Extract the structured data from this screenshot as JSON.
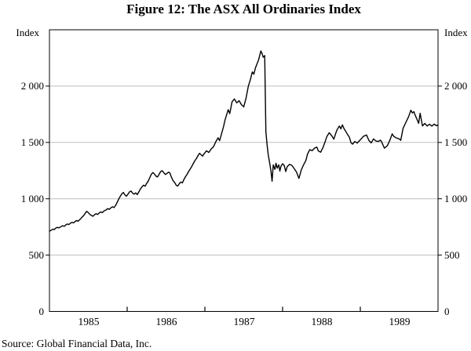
{
  "figure": {
    "title": "Figure 12: The ASX All Ordinaries Index",
    "source": "Source: Global Financial Data, Inc."
  },
  "colors": {
    "line": "#000000",
    "gridline": "#bdbdbd",
    "axis": "#000000",
    "tick": "#000000",
    "background": "#ffffff",
    "text": "#000000"
  },
  "chart_data": {
    "type": "line",
    "title": "Figure 12: The ASX All Ordinaries Index",
    "xlabel": "",
    "ylabel": "Index",
    "grid": true,
    "legend": "none",
    "x_axis": {
      "range": [
        1985,
        1990
      ],
      "tick_years": [
        1986,
        1987,
        1988,
        1989
      ],
      "labels": [
        {
          "text": "1985",
          "x": 1985.5
        },
        {
          "text": "1986",
          "x": 1986.5
        },
        {
          "text": "1987",
          "x": 1987.5
        },
        {
          "text": "1988",
          "x": 1988.5
        },
        {
          "text": "1989",
          "x": 1989.5
        }
      ]
    },
    "y_axis": {
      "label_left": "Index",
      "label_right": "Index",
      "range": [
        0,
        2500
      ],
      "gridlines": [
        500,
        1000,
        1500,
        2000
      ],
      "ticks": [
        {
          "value": 0,
          "label": "0"
        },
        {
          "value": 500,
          "label": "500"
        },
        {
          "value": 1000,
          "label": "1 000"
        },
        {
          "value": 1500,
          "label": "1 500"
        },
        {
          "value": 2000,
          "label": "2 000"
        }
      ]
    },
    "series": [
      {
        "name": "ASX All Ordinaries Index",
        "color": "#000000",
        "points": [
          [
            1985.0,
            712
          ],
          [
            1985.02,
            720
          ],
          [
            1985.04,
            730
          ],
          [
            1985.06,
            726
          ],
          [
            1985.08,
            739
          ],
          [
            1985.1,
            746
          ],
          [
            1985.12,
            741
          ],
          [
            1985.15,
            753
          ],
          [
            1985.17,
            761
          ],
          [
            1985.19,
            756
          ],
          [
            1985.21,
            768
          ],
          [
            1985.23,
            776
          ],
          [
            1985.25,
            771
          ],
          [
            1985.27,
            783
          ],
          [
            1985.29,
            791
          ],
          [
            1985.31,
            786
          ],
          [
            1985.33,
            799
          ],
          [
            1985.35,
            807
          ],
          [
            1985.37,
            801
          ],
          [
            1985.4,
            821
          ],
          [
            1985.42,
            837
          ],
          [
            1985.44,
            851
          ],
          [
            1985.46,
            871
          ],
          [
            1985.48,
            889
          ],
          [
            1985.5,
            877
          ],
          [
            1985.52,
            861
          ],
          [
            1985.54,
            852
          ],
          [
            1985.56,
            845
          ],
          [
            1985.58,
            858
          ],
          [
            1985.6,
            868
          ],
          [
            1985.62,
            861
          ],
          [
            1985.64,
            875
          ],
          [
            1985.66,
            883
          ],
          [
            1985.68,
            877
          ],
          [
            1985.7,
            891
          ],
          [
            1985.73,
            901
          ],
          [
            1985.75,
            913
          ],
          [
            1985.77,
            906
          ],
          [
            1985.79,
            919
          ],
          [
            1985.81,
            929
          ],
          [
            1985.83,
            922
          ],
          [
            1985.85,
            939
          ],
          [
            1985.87,
            966
          ],
          [
            1985.89,
            996
          ],
          [
            1985.91,
            1021
          ],
          [
            1985.93,
            1043
          ],
          [
            1985.95,
            1056
          ],
          [
            1985.97,
            1036
          ],
          [
            1985.99,
            1022
          ],
          [
            1986.01,
            1041
          ],
          [
            1986.03,
            1061
          ],
          [
            1986.05,
            1069
          ],
          [
            1986.07,
            1051
          ],
          [
            1986.09,
            1040
          ],
          [
            1986.11,
            1053
          ],
          [
            1986.13,
            1037
          ],
          [
            1986.15,
            1061
          ],
          [
            1986.17,
            1086
          ],
          [
            1986.19,
            1106
          ],
          [
            1986.21,
            1121
          ],
          [
            1986.23,
            1111
          ],
          [
            1986.25,
            1136
          ],
          [
            1986.27,
            1156
          ],
          [
            1986.29,
            1186
          ],
          [
            1986.31,
            1216
          ],
          [
            1986.33,
            1233
          ],
          [
            1986.35,
            1221
          ],
          [
            1986.37,
            1201
          ],
          [
            1986.39,
            1193
          ],
          [
            1986.41,
            1216
          ],
          [
            1986.43,
            1241
          ],
          [
            1986.45,
            1249
          ],
          [
            1986.47,
            1233
          ],
          [
            1986.49,
            1216
          ],
          [
            1986.51,
            1223
          ],
          [
            1986.53,
            1236
          ],
          [
            1986.55,
            1229
          ],
          [
            1986.57,
            1191
          ],
          [
            1986.59,
            1161
          ],
          [
            1986.61,
            1146
          ],
          [
            1986.63,
            1121
          ],
          [
            1986.65,
            1113
          ],
          [
            1986.67,
            1133
          ],
          [
            1986.69,
            1148
          ],
          [
            1986.71,
            1141
          ],
          [
            1986.73,
            1171
          ],
          [
            1986.75,
            1196
          ],
          [
            1986.77,
            1216
          ],
          [
            1986.79,
            1241
          ],
          [
            1986.81,
            1263
          ],
          [
            1986.83,
            1286
          ],
          [
            1986.85,
            1311
          ],
          [
            1986.87,
            1336
          ],
          [
            1986.89,
            1356
          ],
          [
            1986.91,
            1381
          ],
          [
            1986.93,
            1403
          ],
          [
            1986.95,
            1391
          ],
          [
            1986.97,
            1379
          ],
          [
            1986.99,
            1399
          ],
          [
            1987.02,
            1426
          ],
          [
            1987.05,
            1411
          ],
          [
            1987.08,
            1441
          ],
          [
            1987.11,
            1461
          ],
          [
            1987.14,
            1506
          ],
          [
            1987.17,
            1541
          ],
          [
            1987.19,
            1516
          ],
          [
            1987.22,
            1591
          ],
          [
            1987.24,
            1641
          ],
          [
            1987.26,
            1701
          ],
          [
            1987.28,
            1746
          ],
          [
            1987.3,
            1791
          ],
          [
            1987.32,
            1756
          ],
          [
            1987.35,
            1861
          ],
          [
            1987.38,
            1886
          ],
          [
            1987.41,
            1851
          ],
          [
            1987.44,
            1871
          ],
          [
            1987.47,
            1836
          ],
          [
            1987.5,
            1816
          ],
          [
            1987.53,
            1896
          ],
          [
            1987.56,
            2001
          ],
          [
            1987.585,
            2056
          ],
          [
            1987.61,
            2126
          ],
          [
            1987.63,
            2106
          ],
          [
            1987.65,
            2161
          ],
          [
            1987.67,
            2196
          ],
          [
            1987.69,
            2231
          ],
          [
            1987.705,
            2271
          ],
          [
            1987.72,
            2312
          ],
          [
            1987.735,
            2289
          ],
          [
            1987.75,
            2256
          ],
          [
            1987.77,
            2271
          ],
          [
            1987.785,
            1595
          ],
          [
            1987.8,
            1481
          ],
          [
            1987.815,
            1391
          ],
          [
            1987.83,
            1331
          ],
          [
            1987.85,
            1251
          ],
          [
            1987.865,
            1156
          ],
          [
            1987.88,
            1301
          ],
          [
            1987.9,
            1261
          ],
          [
            1987.915,
            1316
          ],
          [
            1987.93,
            1271
          ],
          [
            1987.95,
            1301
          ],
          [
            1987.965,
            1246
          ],
          [
            1987.98,
            1291
          ],
          [
            1988.0,
            1311
          ],
          [
            1988.02,
            1296
          ],
          [
            1988.04,
            1241
          ],
          [
            1988.06,
            1286
          ],
          [
            1988.09,
            1306
          ],
          [
            1988.12,
            1296
          ],
          [
            1988.15,
            1266
          ],
          [
            1988.18,
            1236
          ],
          [
            1988.21,
            1181
          ],
          [
            1988.24,
            1256
          ],
          [
            1988.27,
            1301
          ],
          [
            1988.3,
            1341
          ],
          [
            1988.32,
            1396
          ],
          [
            1988.35,
            1436
          ],
          [
            1988.38,
            1426
          ],
          [
            1988.41,
            1449
          ],
          [
            1988.44,
            1459
          ],
          [
            1988.46,
            1425
          ],
          [
            1988.49,
            1413
          ],
          [
            1988.52,
            1456
          ],
          [
            1988.55,
            1511
          ],
          [
            1988.57,
            1553
          ],
          [
            1988.6,
            1586
          ],
          [
            1988.63,
            1561
          ],
          [
            1988.66,
            1529
          ],
          [
            1988.68,
            1573
          ],
          [
            1988.7,
            1611
          ],
          [
            1988.73,
            1646
          ],
          [
            1988.75,
            1621
          ],
          [
            1988.77,
            1656
          ],
          [
            1988.79,
            1623
          ],
          [
            1988.81,
            1601
          ],
          [
            1988.83,
            1577
          ],
          [
            1988.86,
            1546
          ],
          [
            1988.88,
            1498
          ],
          [
            1988.9,
            1485
          ],
          [
            1988.93,
            1509
          ],
          [
            1988.96,
            1494
          ],
          [
            1988.98,
            1509
          ],
          [
            1989.01,
            1531
          ],
          [
            1989.04,
            1554
          ],
          [
            1989.08,
            1566
          ],
          [
            1989.11,
            1519
          ],
          [
            1989.14,
            1496
          ],
          [
            1989.17,
            1531
          ],
          [
            1989.2,
            1513
          ],
          [
            1989.23,
            1508
          ],
          [
            1989.26,
            1521
          ],
          [
            1989.28,
            1496
          ],
          [
            1989.31,
            1449
          ],
          [
            1989.35,
            1473
          ],
          [
            1989.38,
            1519
          ],
          [
            1989.41,
            1576
          ],
          [
            1989.43,
            1554
          ],
          [
            1989.46,
            1541
          ],
          [
            1989.5,
            1531
          ],
          [
            1989.52,
            1519
          ],
          [
            1989.55,
            1623
          ],
          [
            1989.58,
            1669
          ],
          [
            1989.62,
            1727
          ],
          [
            1989.65,
            1786
          ],
          [
            1989.67,
            1762
          ],
          [
            1989.69,
            1773
          ],
          [
            1989.7,
            1751
          ],
          [
            1989.73,
            1704
          ],
          [
            1989.75,
            1669
          ],
          [
            1989.77,
            1759
          ],
          [
            1989.8,
            1646
          ],
          [
            1989.83,
            1669
          ],
          [
            1989.86,
            1646
          ],
          [
            1989.89,
            1661
          ],
          [
            1989.92,
            1645
          ],
          [
            1989.95,
            1663
          ],
          [
            1989.98,
            1648
          ],
          [
            1990.0,
            1656
          ]
        ]
      }
    ]
  }
}
